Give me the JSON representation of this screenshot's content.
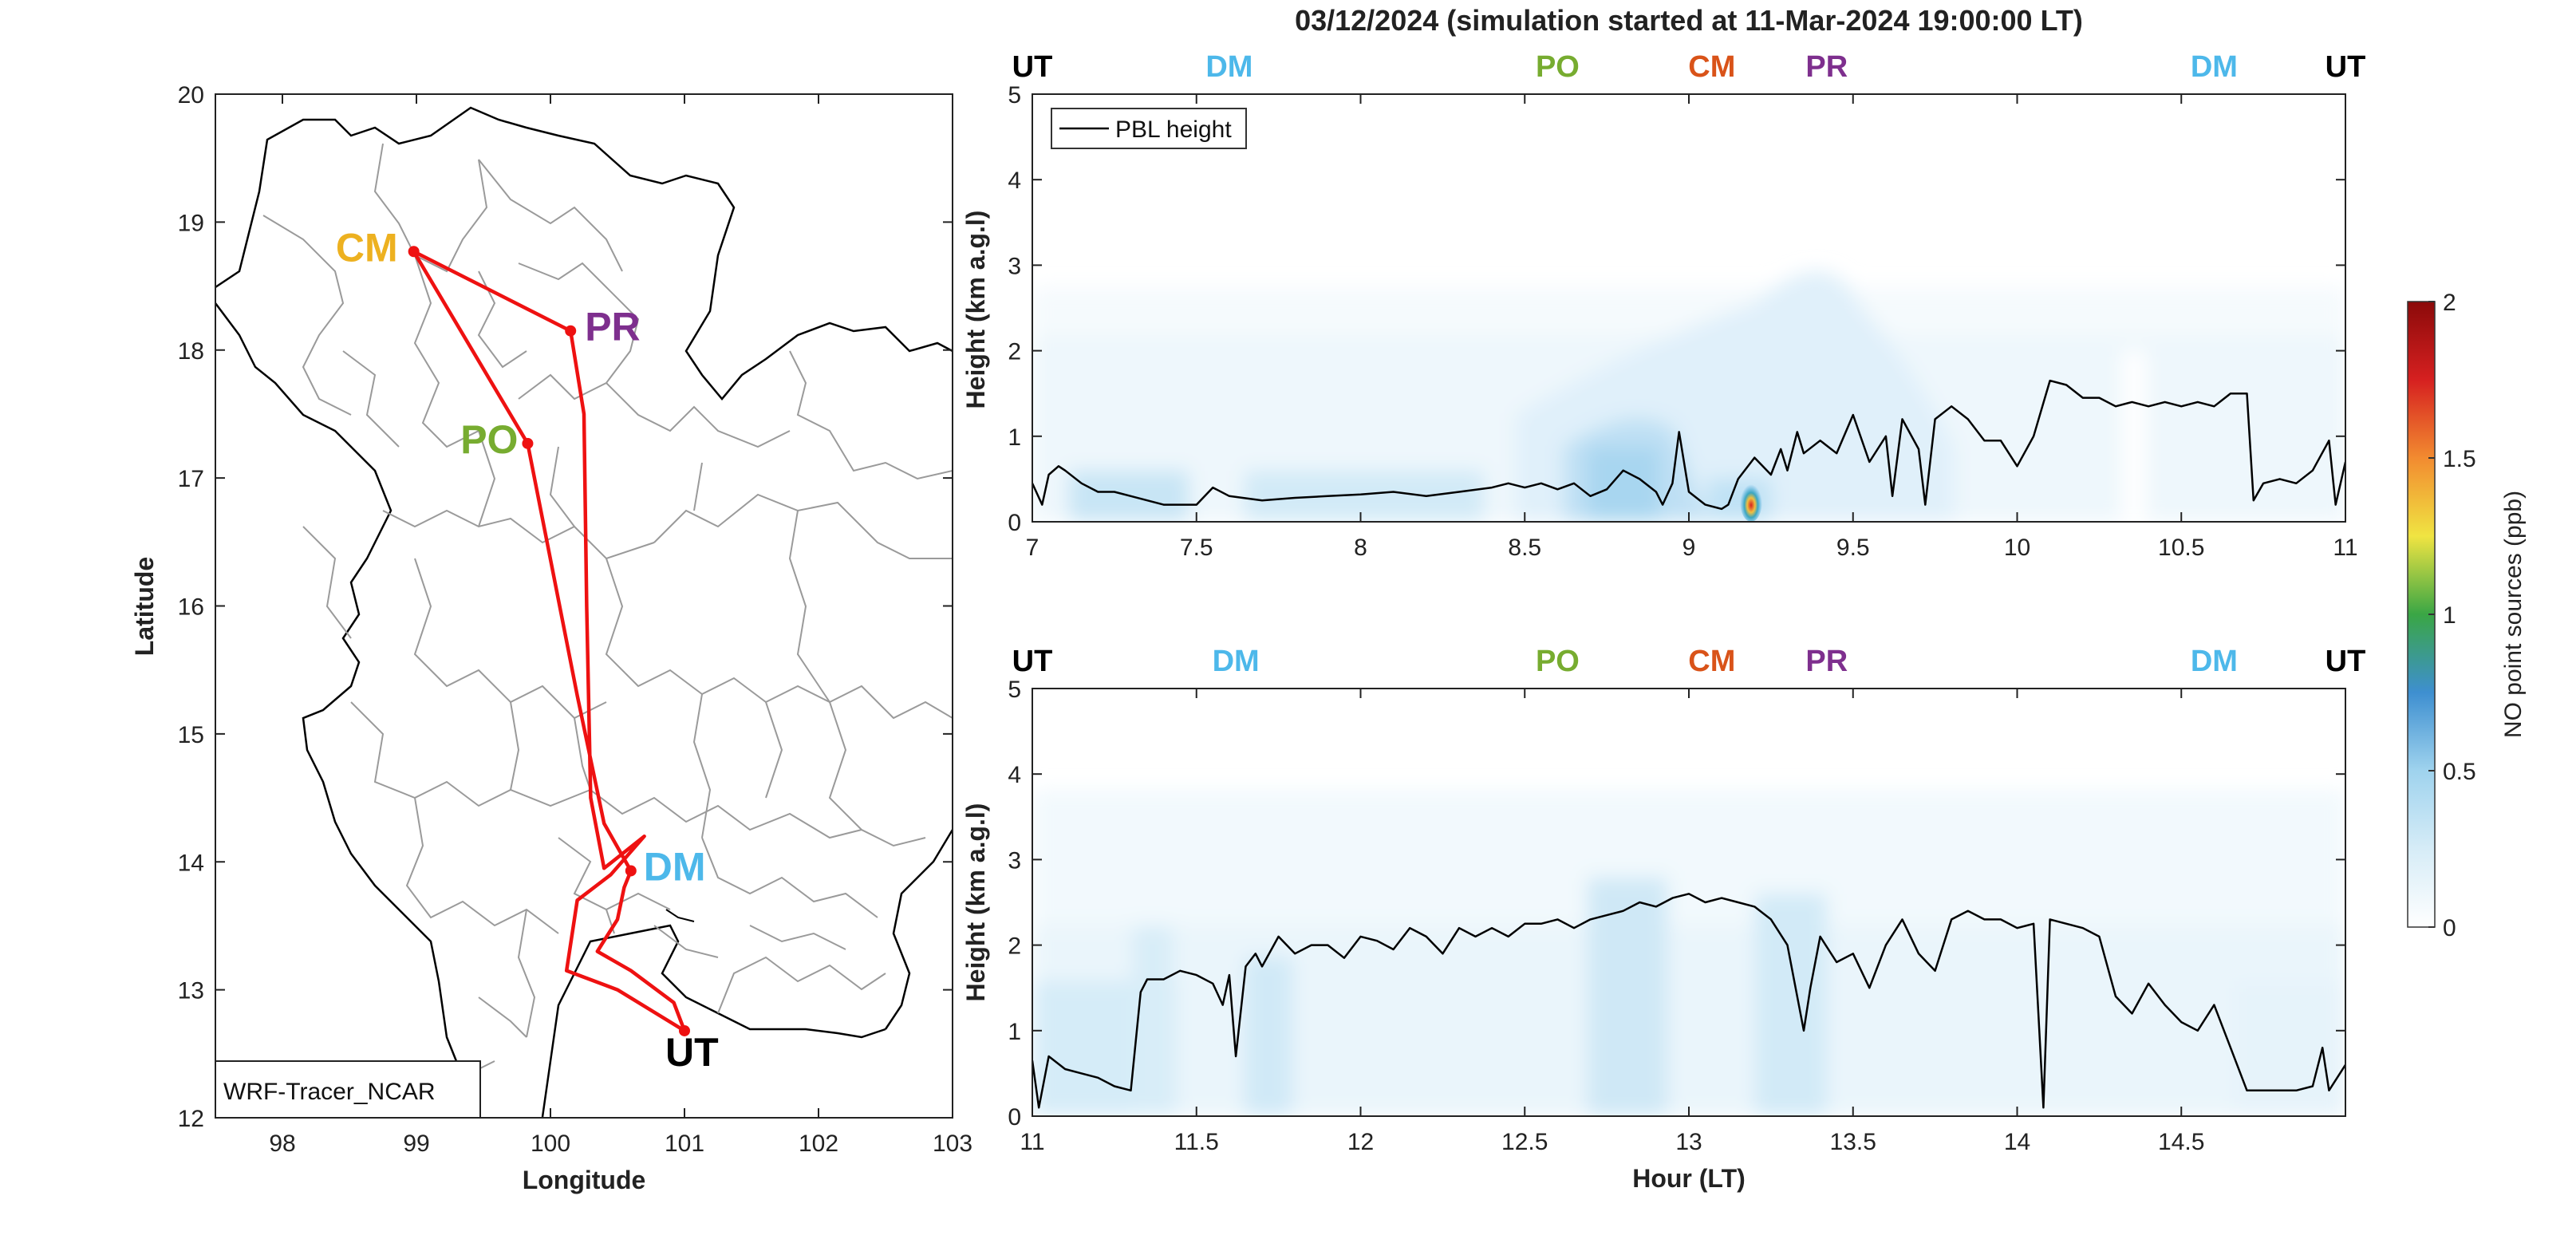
{
  "figure_title": "03/12/2024 (simulation started at 11-Mar-2024 19:00:00 LT)",
  "colors": {
    "UT": "#000000",
    "DM": "#4db8ea",
    "PO": "#77ac30",
    "CM": "#d95319",
    "PR": "#7e2f8e",
    "CM_map": "#edb120",
    "track": "#ee1111",
    "pbl": "#000000"
  },
  "chart_data": [
    {
      "type": "map",
      "xlabel": "Longitude",
      "ylabel": "Latitude",
      "xlim": [
        97.5,
        103
      ],
      "ylim": [
        12,
        20
      ],
      "xticks": [
        98,
        99,
        100,
        101,
        102,
        103
      ],
      "yticks": [
        12,
        13,
        14,
        15,
        16,
        17,
        18,
        19,
        20
      ],
      "model_label": "WRF-Tracer_NCAR",
      "sites": [
        {
          "name": "CM",
          "lon": 98.98,
          "lat": 18.77
        },
        {
          "name": "PR",
          "lon": 100.15,
          "lat": 18.15
        },
        {
          "name": "PO",
          "lon": 99.83,
          "lat": 17.27
        },
        {
          "name": "DM",
          "lon": 100.6,
          "lat": 13.93
        },
        {
          "name": "UT",
          "lon": 101.0,
          "lat": 12.68
        }
      ],
      "flight_track": [
        [
          101.0,
          12.68
        ],
        [
          100.92,
          12.9
        ],
        [
          100.6,
          13.15
        ],
        [
          100.35,
          13.3
        ],
        [
          100.5,
          13.55
        ],
        [
          100.55,
          13.8
        ],
        [
          100.6,
          13.93
        ],
        [
          100.4,
          14.3
        ],
        [
          100.2,
          15.3
        ],
        [
          99.83,
          17.27
        ],
        [
          98.98,
          18.77
        ],
        [
          100.15,
          18.15
        ],
        [
          100.25,
          17.5
        ],
        [
          100.27,
          16.0
        ],
        [
          100.3,
          14.5
        ],
        [
          100.4,
          13.95
        ],
        [
          100.7,
          14.2
        ],
        [
          100.45,
          13.9
        ],
        [
          100.2,
          13.7
        ],
        [
          100.12,
          13.15
        ],
        [
          100.5,
          13.0
        ],
        [
          101.0,
          12.68
        ]
      ]
    },
    {
      "type": "heatmap",
      "xlim": [
        7,
        11
      ],
      "ylim": [
        0,
        5
      ],
      "xticks": [
        7,
        7.5,
        8,
        8.5,
        9,
        9.5,
        10,
        10.5,
        11
      ],
      "yticks": [
        0,
        1,
        2,
        3,
        4,
        5
      ],
      "ylabel": "Height (km a.g.l)",
      "legend": "PBL height",
      "site_labels": [
        {
          "name": "UT",
          "x": 7.0
        },
        {
          "name": "DM",
          "x": 7.6
        },
        {
          "name": "PO",
          "x": 8.6
        },
        {
          "name": "CM",
          "x": 9.07
        },
        {
          "name": "PR",
          "x": 9.42
        },
        {
          "name": "DM",
          "x": 10.6
        },
        {
          "name": "UT",
          "x": 11.0
        }
      ],
      "pbl": {
        "x": [
          7.0,
          7.03,
          7.05,
          7.08,
          7.1,
          7.15,
          7.2,
          7.25,
          7.3,
          7.35,
          7.4,
          7.45,
          7.5,
          7.55,
          7.6,
          7.7,
          7.8,
          7.9,
          8.0,
          8.1,
          8.2,
          8.3,
          8.4,
          8.45,
          8.5,
          8.55,
          8.6,
          8.65,
          8.7,
          8.75,
          8.8,
          8.85,
          8.9,
          8.92,
          8.95,
          8.97,
          9.0,
          9.05,
          9.1,
          9.12,
          9.15,
          9.2,
          9.25,
          9.28,
          9.3,
          9.33,
          9.35,
          9.4,
          9.45,
          9.5,
          9.55,
          9.6,
          9.62,
          9.65,
          9.7,
          9.72,
          9.75,
          9.8,
          9.85,
          9.9,
          9.95,
          10.0,
          10.05,
          10.1,
          10.15,
          10.2,
          10.25,
          10.3,
          10.35,
          10.4,
          10.45,
          10.5,
          10.55,
          10.6,
          10.65,
          10.7,
          10.72,
          10.75,
          10.8,
          10.85,
          10.9,
          10.95,
          10.97,
          11.0
        ],
        "y": [
          0.45,
          0.2,
          0.55,
          0.65,
          0.6,
          0.45,
          0.35,
          0.35,
          0.3,
          0.25,
          0.2,
          0.2,
          0.2,
          0.4,
          0.3,
          0.25,
          0.28,
          0.3,
          0.32,
          0.35,
          0.3,
          0.35,
          0.4,
          0.45,
          0.4,
          0.45,
          0.38,
          0.45,
          0.3,
          0.38,
          0.6,
          0.5,
          0.35,
          0.2,
          0.45,
          1.05,
          0.35,
          0.2,
          0.15,
          0.2,
          0.5,
          0.75,
          0.55,
          0.85,
          0.6,
          1.05,
          0.8,
          0.95,
          0.8,
          1.25,
          0.7,
          1.0,
          0.3,
          1.2,
          0.85,
          0.2,
          1.2,
          1.35,
          1.2,
          0.95,
          0.95,
          0.65,
          1.0,
          1.65,
          1.6,
          1.45,
          1.45,
          1.35,
          1.4,
          1.35,
          1.4,
          1.35,
          1.4,
          1.35,
          1.5,
          1.5,
          0.25,
          0.45,
          0.5,
          0.45,
          0.6,
          0.95,
          0.2,
          0.7
        ]
      }
    },
    {
      "type": "heatmap",
      "xlim": [
        11,
        15
      ],
      "ylim": [
        0,
        5
      ],
      "xticks": [
        11,
        11.5,
        12,
        12.5,
        13,
        13.5,
        14,
        14.5
      ],
      "yticks": [
        0,
        1,
        2,
        3,
        4,
        5
      ],
      "xlabel": "Hour (LT)",
      "ylabel": "Height (km a.g.l)",
      "site_labels": [
        {
          "name": "UT",
          "x": 11.0
        },
        {
          "name": "DM",
          "x": 11.62
        },
        {
          "name": "PO",
          "x": 12.6
        },
        {
          "name": "CM",
          "x": 13.07
        },
        {
          "name": "PR",
          "x": 13.42
        },
        {
          "name": "DM",
          "x": 14.6
        },
        {
          "name": "UT",
          "x": 15.0
        }
      ],
      "pbl": {
        "x": [
          11.0,
          11.02,
          11.05,
          11.1,
          11.15,
          11.2,
          11.25,
          11.3,
          11.33,
          11.35,
          11.4,
          11.45,
          11.5,
          11.55,
          11.58,
          11.6,
          11.62,
          11.65,
          11.68,
          11.7,
          11.75,
          11.8,
          11.85,
          11.9,
          11.95,
          12.0,
          12.05,
          12.1,
          12.15,
          12.2,
          12.25,
          12.3,
          12.35,
          12.4,
          12.45,
          12.5,
          12.55,
          12.6,
          12.65,
          12.7,
          12.75,
          12.8,
          12.85,
          12.9,
          12.95,
          13.0,
          13.05,
          13.1,
          13.15,
          13.2,
          13.25,
          13.3,
          13.35,
          13.37,
          13.4,
          13.45,
          13.5,
          13.55,
          13.6,
          13.65,
          13.7,
          13.75,
          13.8,
          13.85,
          13.9,
          13.95,
          14.0,
          14.05,
          14.08,
          14.1,
          14.15,
          14.2,
          14.25,
          14.3,
          14.35,
          14.4,
          14.45,
          14.5,
          14.55,
          14.6,
          14.65,
          14.7,
          14.75,
          14.8,
          14.85,
          14.9,
          14.93,
          14.95,
          15.0
        ],
        "y": [
          0.65,
          0.1,
          0.7,
          0.55,
          0.5,
          0.45,
          0.35,
          0.3,
          1.45,
          1.6,
          1.6,
          1.7,
          1.65,
          1.55,
          1.3,
          1.65,
          0.7,
          1.75,
          1.9,
          1.75,
          2.1,
          1.9,
          2.0,
          2.0,
          1.85,
          2.1,
          2.05,
          1.95,
          2.2,
          2.1,
          1.9,
          2.2,
          2.1,
          2.2,
          2.1,
          2.25,
          2.25,
          2.3,
          2.2,
          2.3,
          2.35,
          2.4,
          2.5,
          2.45,
          2.55,
          2.6,
          2.5,
          2.55,
          2.5,
          2.45,
          2.3,
          2.0,
          1.0,
          1.5,
          2.1,
          1.8,
          1.9,
          1.5,
          2.0,
          2.3,
          1.9,
          1.7,
          2.3,
          2.4,
          2.3,
          2.3,
          2.2,
          2.25,
          0.1,
          2.3,
          2.25,
          2.2,
          2.1,
          1.4,
          1.2,
          1.55,
          1.3,
          1.1,
          1.0,
          1.3,
          0.8,
          0.3,
          0.3,
          0.3,
          0.3,
          0.35,
          0.8,
          0.3,
          0.6
        ]
      }
    },
    {
      "type": "colorbar",
      "label": "NO point sources (ppb)",
      "ticks": [
        0,
        0.5,
        1,
        1.5,
        2
      ],
      "range": [
        0,
        2
      ],
      "stops": [
        "#ffffff",
        "#d6ecf7",
        "#9fd3ee",
        "#3e8fd0",
        "#3aa645",
        "#f0e442",
        "#f28b30",
        "#d62020",
        "#8b0a0a"
      ]
    }
  ]
}
